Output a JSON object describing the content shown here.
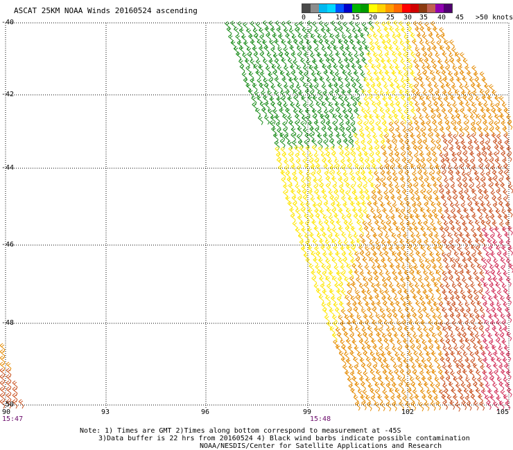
{
  "title": "ASCAT 25KM NOAA Winds 20160524 ascending",
  "legend": {
    "colors": [
      "#4a4a4a",
      "#8c8c8c",
      "#00b8f0",
      "#00d8ff",
      "#0050ff",
      "#0000c8",
      "#00b400",
      "#009a00",
      "#ffff00",
      "#ffd200",
      "#ff9a00",
      "#ff6a00",
      "#ff0000",
      "#d00000",
      "#8a3a10",
      "#c06050",
      "#9000b0",
      "#500070"
    ],
    "labels": [
      "0",
      "5",
      "10",
      "15",
      "20",
      "25",
      "30",
      "35",
      "40",
      "45",
      ">50 knots"
    ]
  },
  "axes": {
    "lat_labels": [
      "-40",
      "-42",
      "-44",
      "-46",
      "-48",
      "-50"
    ],
    "lon_labels": [
      "90",
      "93",
      "96",
      "99",
      "102",
      "105"
    ]
  },
  "times": [
    "15:47",
    "15:48"
  ],
  "notes": [
    "Note: 1) Times are GMT 2)Times along bottom correspond to measurement at -45S",
    "3)Data buffer is 22 hrs from 20160524 4) Black wind barbs indicate possible contamination",
    "NOAA/NESDIS/Center for Satellite Applications and Research"
  ],
  "barb_colors": {
    "light_wind": "#1a8c1a",
    "moderate_wind": "#ffe600",
    "strong_wind": "#e58a00",
    "very_strong_wind": "#c8501e",
    "gale_wind": "#d2305a"
  }
}
